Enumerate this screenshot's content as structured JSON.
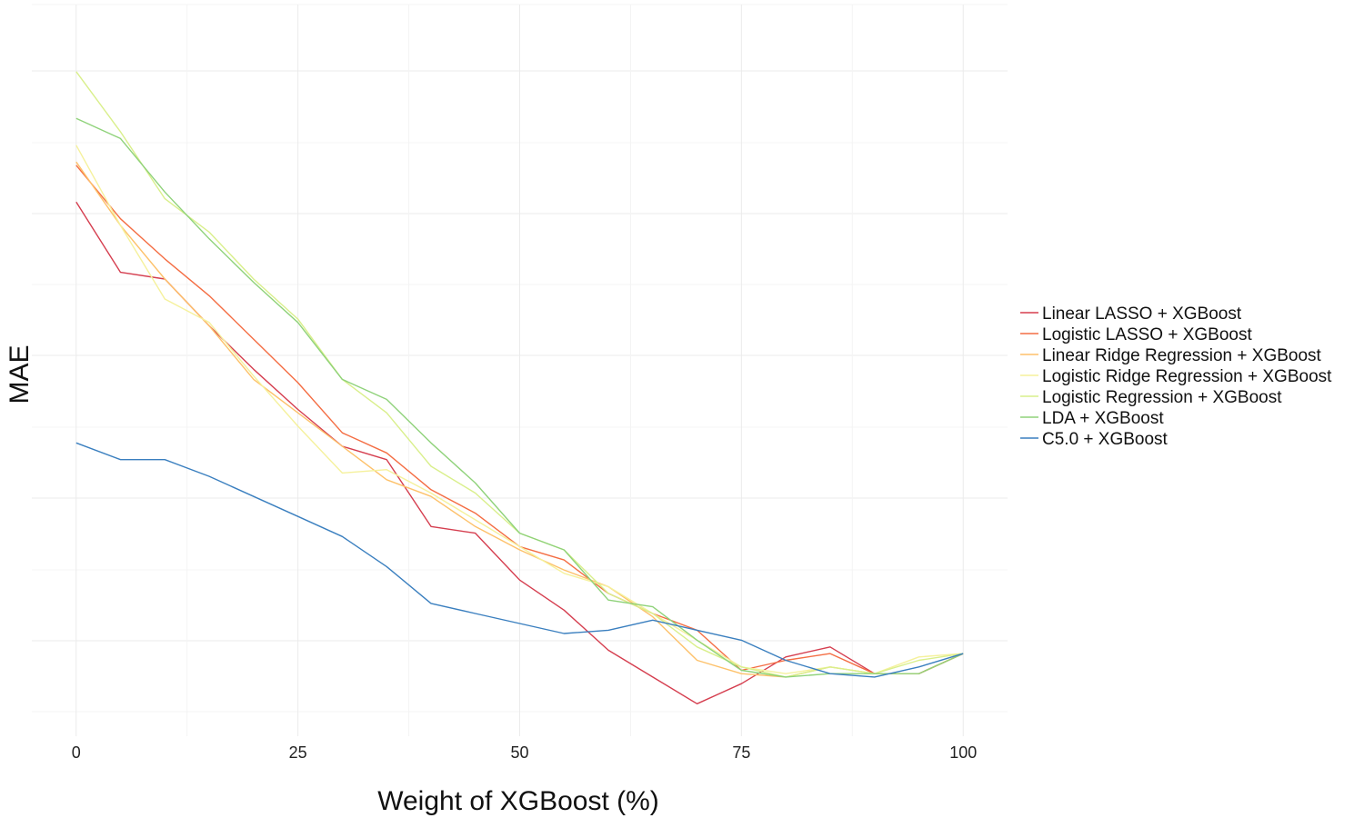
{
  "chart_data": {
    "type": "line",
    "xlabel": "Weight of XGBoost (%)",
    "ylabel": "MAE",
    "x_ticks": [
      0,
      25,
      50,
      75,
      100
    ],
    "xlim": [
      -5,
      105
    ],
    "ylim": [
      0,
      100
    ],
    "y_tick_labels_shown": false,
    "grid": true,
    "legend_position": "right",
    "series": [
      {
        "name": "Linear LASSO + XGBoost",
        "color": "#d53e4f",
        "points": [
          [
            0,
            75.5
          ],
          [
            5,
            65
          ],
          [
            10,
            64
          ],
          [
            15,
            57
          ],
          [
            20,
            50.5
          ],
          [
            25,
            44.5
          ],
          [
            30,
            39
          ],
          [
            35,
            37
          ],
          [
            40,
            27
          ],
          [
            45,
            26
          ],
          [
            50,
            19
          ],
          [
            55,
            14.5
          ],
          [
            60,
            8.5
          ],
          [
            65,
            4.5
          ],
          [
            70,
            0.5
          ],
          [
            75,
            3.5
          ],
          [
            80,
            7.5
          ],
          [
            85,
            9
          ],
          [
            90,
            5
          ],
          [
            95,
            5
          ],
          [
            100,
            8
          ]
        ]
      },
      {
        "name": "Logistic LASSO + XGBoost",
        "color": "#f46d43",
        "points": [
          [
            0,
            81
          ],
          [
            5,
            73
          ],
          [
            10,
            67
          ],
          [
            15,
            61.5
          ],
          [
            20,
            55
          ],
          [
            25,
            48.5
          ],
          [
            30,
            41
          ],
          [
            35,
            38
          ],
          [
            40,
            32.5
          ],
          [
            45,
            29
          ],
          [
            50,
            24
          ],
          [
            55,
            22
          ],
          [
            60,
            17
          ],
          [
            65,
            14
          ],
          [
            70,
            11.5
          ],
          [
            75,
            5.5
          ],
          [
            80,
            7
          ],
          [
            85,
            8
          ],
          [
            90,
            5
          ],
          [
            95,
            5
          ],
          [
            100,
            8
          ]
        ]
      },
      {
        "name": "Linear Ridge Regression + XGBoost",
        "color": "#fdc16a",
        "points": [
          [
            0,
            81.5
          ],
          [
            5,
            72
          ],
          [
            10,
            64
          ],
          [
            15,
            57
          ],
          [
            20,
            49
          ],
          [
            25,
            44
          ],
          [
            30,
            39
          ],
          [
            35,
            34
          ],
          [
            40,
            31.5
          ],
          [
            45,
            27
          ],
          [
            50,
            23.5
          ],
          [
            55,
            20.5
          ],
          [
            60,
            18
          ],
          [
            65,
            13.5
          ],
          [
            70,
            7
          ],
          [
            75,
            5
          ],
          [
            80,
            4.5
          ],
          [
            85,
            6
          ],
          [
            90,
            5
          ],
          [
            95,
            5
          ],
          [
            100,
            8
          ]
        ]
      },
      {
        "name": "Logistic Ridge Regression + XGBoost",
        "color": "#f5f19c",
        "points": [
          [
            0,
            84
          ],
          [
            5,
            72
          ],
          [
            10,
            61
          ],
          [
            15,
            57.5
          ],
          [
            20,
            49.5
          ],
          [
            25,
            42
          ],
          [
            30,
            35
          ],
          [
            35,
            35.5
          ],
          [
            40,
            32
          ],
          [
            45,
            28
          ],
          [
            50,
            24
          ],
          [
            55,
            20
          ],
          [
            60,
            18
          ],
          [
            65,
            14
          ],
          [
            70,
            10
          ],
          [
            75,
            6
          ],
          [
            80,
            5
          ],
          [
            85,
            6
          ],
          [
            90,
            5
          ],
          [
            95,
            7.5
          ],
          [
            100,
            8
          ]
        ]
      },
      {
        "name": "Logistic Regression + XGBoost",
        "color": "#d9ef8b",
        "points": [
          [
            0,
            95
          ],
          [
            5,
            86
          ],
          [
            10,
            76
          ],
          [
            15,
            71
          ],
          [
            20,
            64
          ],
          [
            25,
            58
          ],
          [
            30,
            49
          ],
          [
            35,
            44
          ],
          [
            40,
            36
          ],
          [
            45,
            32
          ],
          [
            50,
            26
          ],
          [
            55,
            23.5
          ],
          [
            60,
            17
          ],
          [
            65,
            14
          ],
          [
            70,
            9
          ],
          [
            75,
            6
          ],
          [
            80,
            4.5
          ],
          [
            85,
            6
          ],
          [
            90,
            5
          ],
          [
            95,
            7
          ],
          [
            100,
            8
          ]
        ]
      },
      {
        "name": "LDA + XGBoost",
        "color": "#8fd27a",
        "points": [
          [
            0,
            88
          ],
          [
            5,
            85
          ],
          [
            10,
            77
          ],
          [
            15,
            70
          ],
          [
            20,
            63.5
          ],
          [
            25,
            57.5
          ],
          [
            30,
            49
          ],
          [
            35,
            46
          ],
          [
            40,
            39.5
          ],
          [
            45,
            33.5
          ],
          [
            50,
            26
          ],
          [
            55,
            23.5
          ],
          [
            60,
            16
          ],
          [
            65,
            15
          ],
          [
            70,
            10
          ],
          [
            75,
            5.5
          ],
          [
            80,
            4.5
          ],
          [
            85,
            5
          ],
          [
            90,
            5
          ],
          [
            95,
            5
          ],
          [
            100,
            8
          ]
        ]
      },
      {
        "name": "C5.0 + XGBoost",
        "color": "#3a7fbf",
        "points": [
          [
            0,
            39.5
          ],
          [
            5,
            37
          ],
          [
            10,
            37
          ],
          [
            15,
            34.5
          ],
          [
            20,
            31.5
          ],
          [
            25,
            28.5
          ],
          [
            30,
            25.5
          ],
          [
            35,
            21
          ],
          [
            40,
            15.5
          ],
          [
            45,
            14
          ],
          [
            50,
            12.5
          ],
          [
            55,
            11
          ],
          [
            60,
            11.5
          ],
          [
            65,
            13
          ],
          [
            70,
            11.5
          ],
          [
            75,
            10
          ],
          [
            80,
            7
          ],
          [
            85,
            5
          ],
          [
            90,
            4.5
          ],
          [
            95,
            6
          ],
          [
            100,
            8
          ]
        ]
      }
    ]
  }
}
